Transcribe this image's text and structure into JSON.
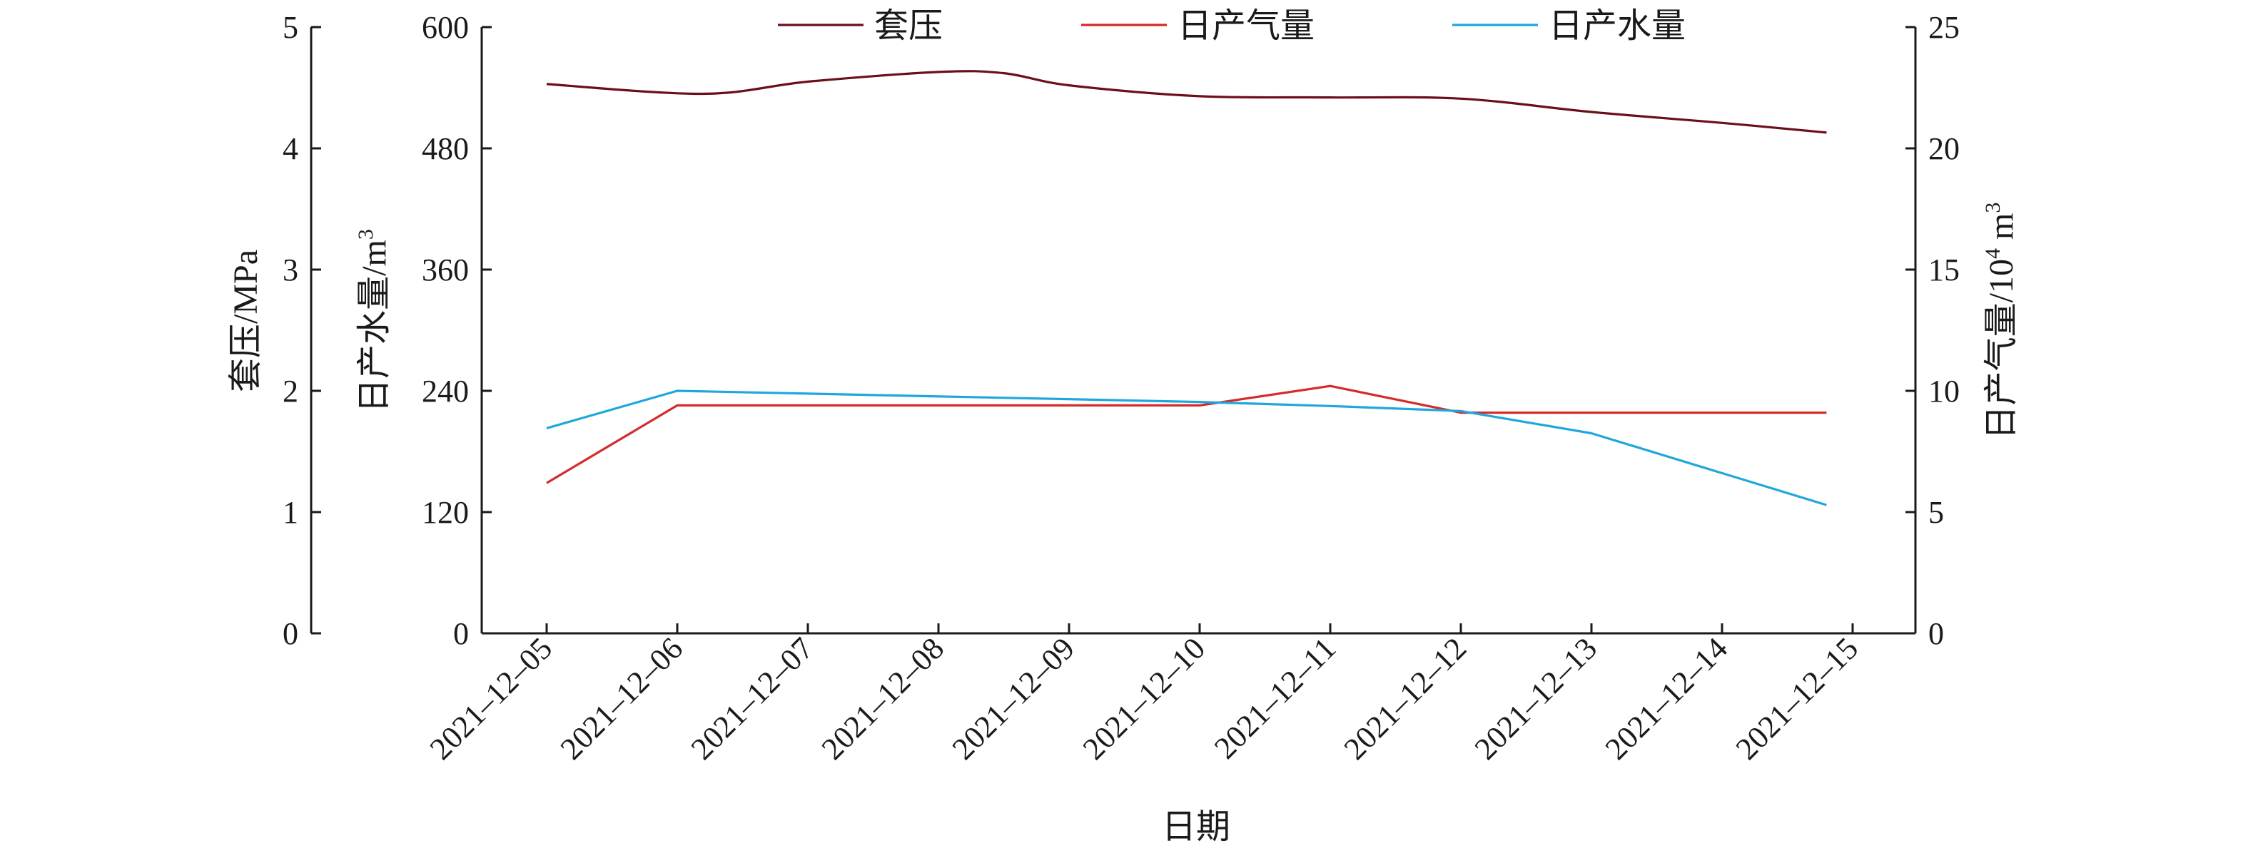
{
  "chart_data": {
    "type": "line",
    "xlabel": "日期",
    "categories": [
      "2021–12–05",
      "2021–12–06",
      "2021–12–07",
      "2021–12–08",
      "2021–12–09",
      "2021–12–10",
      "2021–12–11",
      "2021–12–12",
      "2021–12–13",
      "2021–12–14",
      "2021–12–15"
    ],
    "axes": {
      "pressure": {
        "label": "套压/MPa",
        "range": [
          0,
          5
        ],
        "ticks": [
          "0",
          "1",
          "2",
          "3",
          "4",
          "5"
        ]
      },
      "water": {
        "label_main": "日产水量/m",
        "label_sup": "3",
        "range": [
          0,
          600
        ],
        "ticks": [
          "0",
          "120",
          "240",
          "360",
          "480",
          "600"
        ]
      },
      "gas": {
        "label_main": "日产气量/10",
        "label_sup": "4",
        "label_tail": " m",
        "label_sup2": "3",
        "range": [
          0,
          25
        ],
        "ticks": [
          "0",
          "5",
          "10",
          "15",
          "20",
          "25"
        ]
      }
    },
    "legend_position": "top",
    "series": [
      {
        "name": "套压",
        "axis": "pressure",
        "color": "#6b0f1a",
        "smooth": true,
        "x": [
          0,
          1.2,
          2,
          3,
          3.5,
          4,
          5,
          6,
          7,
          8,
          9,
          9.8
        ],
        "values": [
          4.53,
          4.45,
          4.55,
          4.63,
          4.62,
          4.52,
          4.43,
          4.42,
          4.41,
          4.3,
          4.21,
          4.13
        ]
      },
      {
        "name": "日产气量",
        "axis": "gas",
        "color": "#d42a2a",
        "smooth": false,
        "x": [
          0,
          1,
          5,
          6,
          7,
          9.8
        ],
        "values": [
          6.2,
          9.4,
          9.4,
          10.2,
          9.1,
          9.1
        ]
      },
      {
        "name": "日产水量",
        "axis": "water",
        "color": "#1fa7dd",
        "smooth": false,
        "x": [
          0,
          1,
          5,
          6,
          7,
          8,
          9.8
        ],
        "values": [
          203,
          240,
          229,
          225,
          220,
          198,
          127
        ]
      }
    ]
  }
}
